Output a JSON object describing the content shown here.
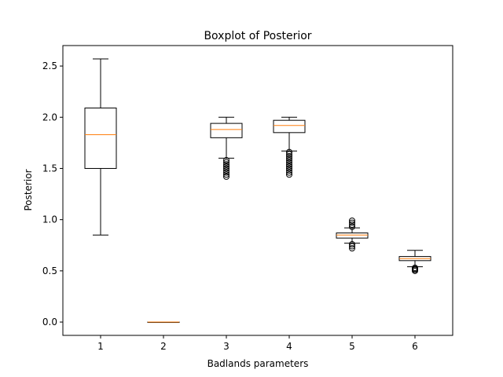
{
  "chart_data": {
    "type": "boxplot",
    "title": "Boxplot of Posterior",
    "xlabel": "Badlands parameters",
    "ylabel": "Posterior",
    "categories": [
      "1",
      "2",
      "3",
      "4",
      "5",
      "6"
    ],
    "ylim": [
      -0.13,
      2.7
    ],
    "yticks": [
      0.0,
      0.5,
      1.0,
      1.5,
      2.0,
      2.5
    ],
    "ytick_labels": [
      "0.0",
      "0.5",
      "1.0",
      "1.5",
      "2.0",
      "2.5"
    ],
    "grid": false,
    "boxes": [
      {
        "category": "1",
        "whisker_low": 0.85,
        "q1": 1.5,
        "median": 1.83,
        "q3": 2.09,
        "whisker_high": 2.57,
        "outliers": []
      },
      {
        "category": "2",
        "whisker_low": 0.0,
        "q1": 0.0,
        "median": 0.0,
        "q3": 0.0,
        "whisker_high": 0.0,
        "outliers": []
      },
      {
        "category": "3",
        "whisker_low": 1.6,
        "q1": 1.8,
        "median": 1.88,
        "q3": 1.94,
        "whisker_high": 2.0,
        "outliers": [
          1.42,
          1.44,
          1.46,
          1.48,
          1.5,
          1.52,
          1.54,
          1.56,
          1.58
        ]
      },
      {
        "category": "4",
        "whisker_low": 1.67,
        "q1": 1.85,
        "median": 1.92,
        "q3": 1.97,
        "whisker_high": 2.0,
        "outliers": [
          1.44,
          1.46,
          1.48,
          1.5,
          1.52,
          1.54,
          1.56,
          1.58,
          1.6,
          1.62,
          1.64,
          1.66
        ]
      },
      {
        "category": "5",
        "whisker_low": 0.77,
        "q1": 0.82,
        "median": 0.85,
        "q3": 0.87,
        "whisker_high": 0.92,
        "outliers": [
          0.72,
          0.74,
          0.76,
          0.93,
          0.95,
          0.97,
          0.99
        ]
      },
      {
        "category": "6",
        "whisker_low": 0.54,
        "q1": 0.6,
        "median": 0.62,
        "q3": 0.64,
        "whisker_high": 0.7,
        "outliers": [
          0.5,
          0.51,
          0.52,
          0.53
        ]
      }
    ],
    "colors": {
      "box": "#000000",
      "median": "#ff7f0e",
      "outlier": "#000000"
    }
  }
}
